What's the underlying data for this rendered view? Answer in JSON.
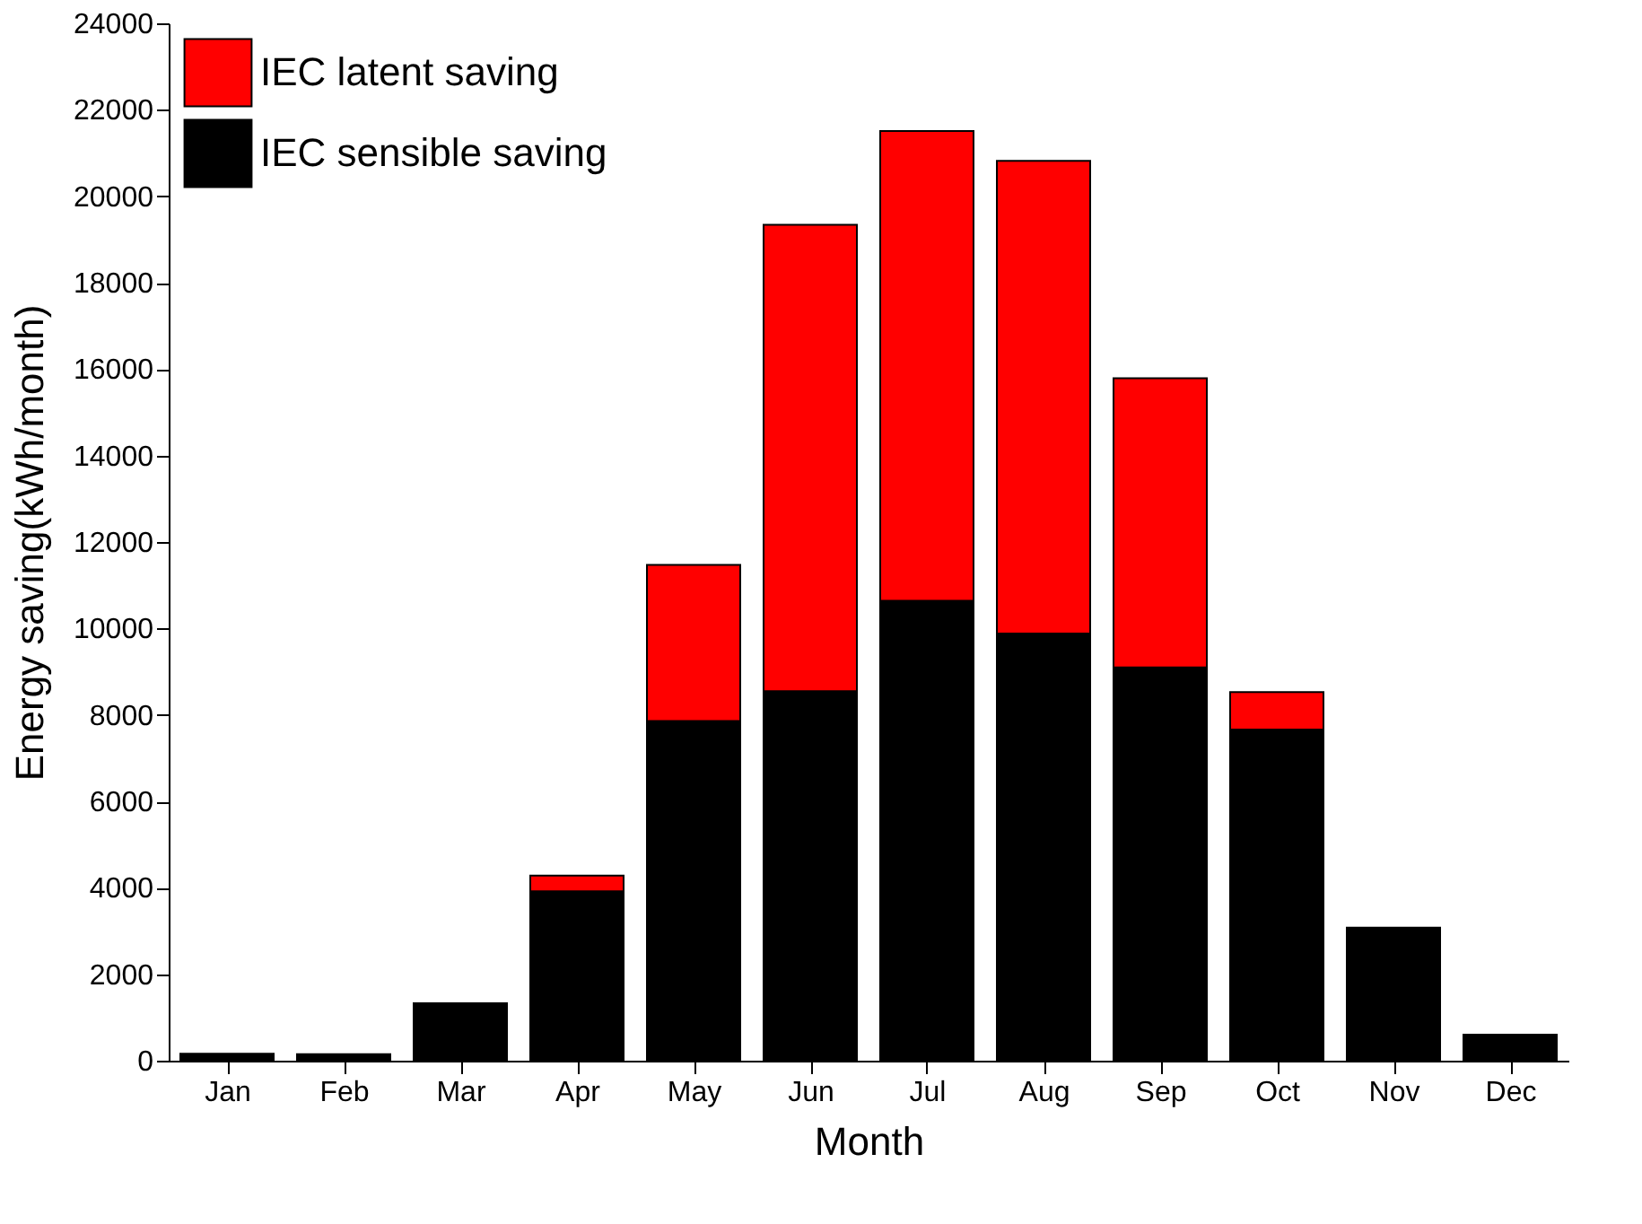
{
  "chart_data": {
    "type": "bar",
    "stacked": true,
    "xlabel": "Month",
    "ylabel": "Energy saving(kWh/month)",
    "categories": [
      "Jan",
      "Feb",
      "Mar",
      "Apr",
      "May",
      "Jun",
      "Jul",
      "Aug",
      "Sep",
      "Oct",
      "Nov",
      "Dec"
    ],
    "series": [
      {
        "name": "IEC sensible saving",
        "color": "#000000",
        "values": [
          160,
          150,
          1330,
          3920,
          7860,
          8550,
          10640,
          9880,
          9100,
          7660,
          3080,
          600
        ]
      },
      {
        "name": "IEC latent saving",
        "color": "#ff0000",
        "values": [
          null,
          null,
          null,
          360,
          3610,
          10790,
          10870,
          10940,
          6690,
          870,
          null,
          null
        ]
      }
    ],
    "ylim": [
      0,
      24000
    ],
    "yticks": [
      0,
      2000,
      4000,
      6000,
      8000,
      10000,
      12000,
      14000,
      16000,
      18000,
      20000,
      22000,
      24000
    ],
    "grid": false,
    "legend": "top left"
  }
}
